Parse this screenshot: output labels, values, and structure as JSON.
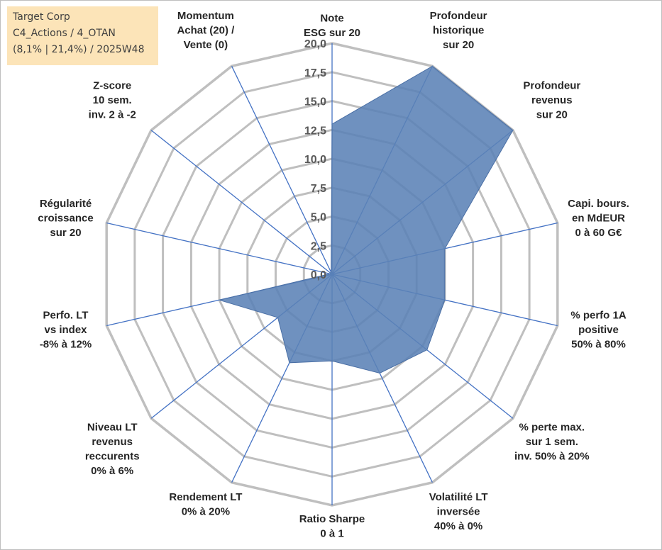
{
  "info_box": {
    "line1": "Target Corp",
    "line2": "C4_Actions / 4_OTAN",
    "line3": "(8,1% | 21,4%) / 2025W48"
  },
  "colors": {
    "grid": "#bfbfbf",
    "spoke": "#4472c4",
    "fill": "#5b82b6",
    "text": "#262626",
    "tick_text": "#595959",
    "info_bg": "#fce4b8"
  },
  "chart_data": {
    "type": "radar",
    "rmin": 0,
    "rmax": 20,
    "tick_step": 2.5,
    "grid_levels": 8,
    "tick_labels": [
      "0,0",
      "2,5",
      "5,0",
      "7,5",
      "10,0",
      "12,5",
      "15,0",
      "17,5",
      "20,0"
    ],
    "categories": [
      [
        "Note",
        "ESG sur 20"
      ],
      [
        "Profondeur",
        "historique",
        "sur 20"
      ],
      [
        "Profondeur",
        "revenus",
        "sur 20"
      ],
      [
        "Capi. bours.",
        "en MdEUR",
        "0 à 60 G€"
      ],
      [
        "% perfo 1A",
        "positive",
        "50% à 80%"
      ],
      [
        "% perte max.",
        "sur 1 sem.",
        "inv. 50% à 20%"
      ],
      [
        "Volatilité LT",
        "inversée",
        "40% à 0%"
      ],
      [
        "Ratio Sharpe",
        "0 à 1"
      ],
      [
        "Rendement LT",
        "0% à 20%"
      ],
      [
        "Niveau LT",
        "revenus",
        "reccurents",
        "0% à 6%"
      ],
      [
        "Perfo. LT",
        "vs index",
        "-8% à 12%"
      ],
      [
        "Régularité",
        "croissance",
        "sur 20"
      ],
      [
        "Z-score",
        "10 sem.",
        "inv. 2 à -2"
      ],
      [
        "Momentum",
        "Achat (20) /",
        "Vente (0)"
      ]
    ],
    "series": [
      {
        "values": [
          13.0,
          20.0,
          20.0,
          10.0,
          10.0,
          10.5,
          9.5,
          7.5,
          8.5,
          6.0,
          10.0,
          0.2,
          0.2,
          0.2
        ]
      }
    ],
    "grid": true,
    "legend": "none"
  }
}
